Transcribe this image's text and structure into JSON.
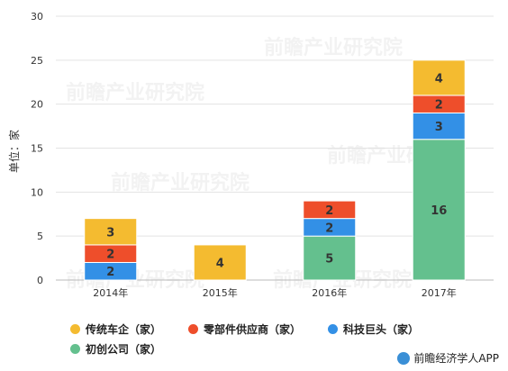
{
  "chart_data": {
    "type": "bar",
    "stacked": true,
    "categories": [
      "2014年",
      "2015年",
      "2016年",
      "2017年"
    ],
    "series": [
      {
        "name": "初创公司（家）",
        "color": "#64c08e",
        "values": [
          0,
          0,
          5,
          16
        ]
      },
      {
        "name": "科技巨头（家）",
        "color": "#3390e6",
        "values": [
          2,
          0,
          2,
          3
        ]
      },
      {
        "name": "零部件供应商（家）",
        "color": "#ee4e2b",
        "values": [
          2,
          0,
          2,
          2
        ]
      },
      {
        "name": "传统车企（家）",
        "color": "#f4bb30",
        "values": [
          3,
          4,
          0,
          4
        ]
      }
    ],
    "ylabel": "单位：家",
    "ylim": [
      0,
      30
    ],
    "yticks": [
      0,
      5,
      10,
      15,
      20,
      25,
      30
    ],
    "grid": true,
    "legend_position": "bottom"
  },
  "legend_order": [
    3,
    2,
    1,
    0
  ],
  "source": "前瞻经济学人APP",
  "watermark": "前瞻产业研究院"
}
